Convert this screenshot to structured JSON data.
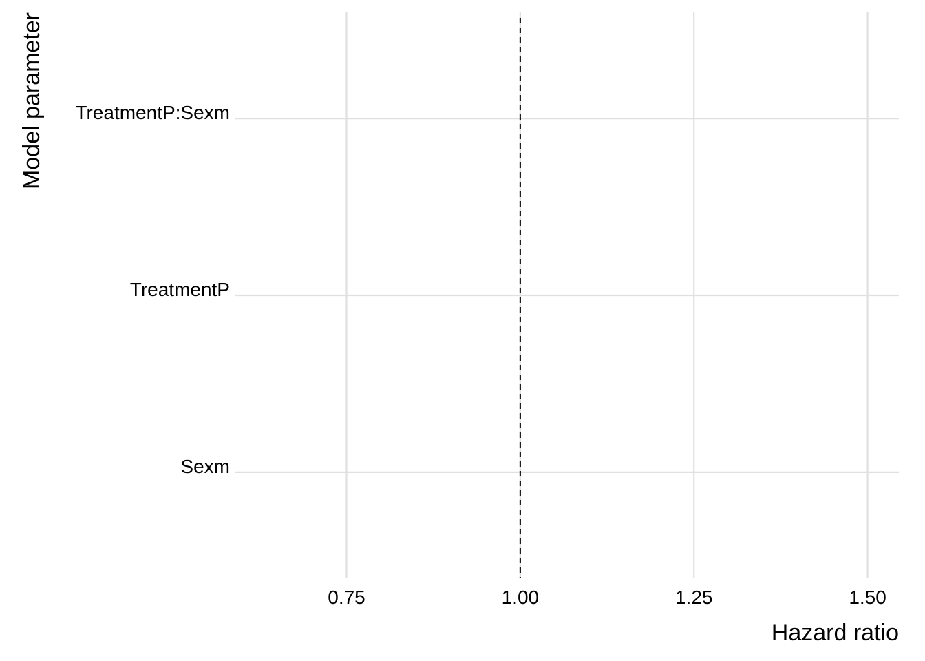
{
  "chart_data": {
    "type": "scatter",
    "title": "",
    "xlabel": "Hazard ratio",
    "ylabel": "Model parameter",
    "categories": [
      "Sexm",
      "TreatmentP",
      "TreatmentP:Sexm"
    ],
    "xlim": [
      0.59,
      1.545
    ],
    "xticks": [
      0.75,
      1.0,
      1.25,
      1.5
    ],
    "xtick_labels": [
      "0.75",
      "1.00",
      "1.25",
      "1.50"
    ],
    "reference_line": {
      "x": 1.0,
      "style": "dashed",
      "color": "#000000"
    },
    "series": [],
    "grid": true,
    "legend": "none"
  }
}
